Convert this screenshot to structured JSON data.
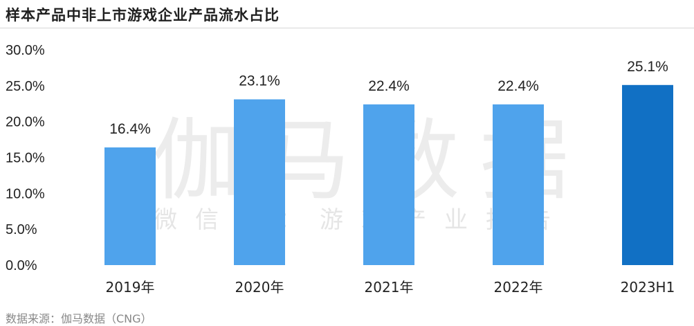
{
  "chart_data": {
    "type": "bar",
    "title": "样本产品中非上市游戏企业产品流水占比",
    "categories": [
      "2019年",
      "2020年",
      "2021年",
      "2022年",
      "2023H1"
    ],
    "values": [
      16.4,
      23.1,
      22.4,
      22.4,
      25.1
    ],
    "data_labels": [
      "16.4%",
      "23.1%",
      "22.4%",
      "22.4%",
      "25.1%"
    ],
    "ylim": [
      0,
      30
    ],
    "yticks": [
      0,
      5,
      10,
      15,
      20,
      25,
      30
    ],
    "ytick_labels": [
      "0.0%",
      "5.0%",
      "10.0%",
      "15.0%",
      "20.0%",
      "25.0%",
      "30.0%"
    ],
    "colors": [
      "#4fa3ec",
      "#4fa3ec",
      "#4fa3ec",
      "#4fa3ec",
      "#1170c4"
    ],
    "grid": false,
    "xlabel": "",
    "ylabel": ""
  },
  "watermark": {
    "main": "伽马数据",
    "sub": "微信号：游戏产业报告"
  },
  "source": "数据来源：伽马数据（CNG）"
}
